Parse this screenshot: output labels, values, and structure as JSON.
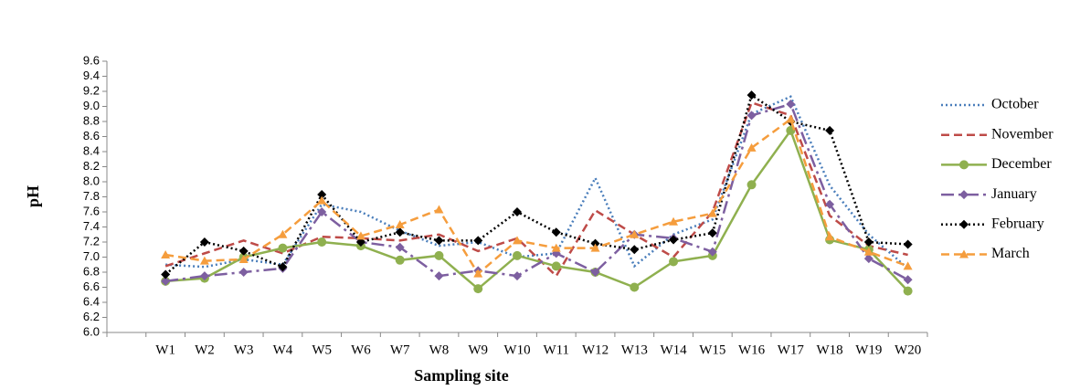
{
  "chart_data": {
    "type": "line",
    "x_label": "Sampling site",
    "y_label": "pH",
    "categories": [
      null,
      "W1",
      "W2",
      "W3",
      "W4",
      "W5",
      "W6",
      "W7",
      "W8",
      "W9",
      "W10",
      "W11",
      "W12",
      "W13",
      "W14",
      "W15",
      "W16",
      "W17",
      "W18",
      "W19",
      "W20"
    ],
    "ylim": [
      6.0,
      9.6
    ],
    "yticks": [
      {
        "value": 6.0,
        "label": "6.0"
      },
      {
        "value": 6.2,
        "label": "6.2"
      },
      {
        "value": 6.4,
        "label": "6.4"
      },
      {
        "value": 6.6,
        "label": "6.6"
      },
      {
        "value": 6.8,
        "label": "6.8"
      },
      {
        "value": 7.0,
        "label": "7.0"
      },
      {
        "value": 7.2,
        "label": "7.2"
      },
      {
        "value": 7.4,
        "label": "7.4"
      },
      {
        "value": 7.6,
        "label": "7.6"
      },
      {
        "value": 7.8,
        "label": "7.8"
      },
      {
        "value": 8.0,
        "label": "8.0"
      },
      {
        "value": 8.2,
        "label": "8.2"
      },
      {
        "value": 8.4,
        "label": "8.4"
      },
      {
        "value": 8.6,
        "label": "8.6"
      },
      {
        "value": 8.8,
        "label": "8.8"
      },
      {
        "value": 9.0,
        "label": "9.0"
      },
      {
        "value": 9.2,
        "label": "9.2"
      },
      {
        "value": 9.4,
        "label": "9.4"
      },
      {
        "value": 9.6,
        "label": "9.6"
      }
    ],
    "grid": false,
    "legend": "right",
    "series": [
      {
        "name": "October",
        "color": "#4a7ebb",
        "line_style": "dotted",
        "marker": "none",
        "values": [
          null,
          6.9,
          6.87,
          6.97,
          6.9,
          7.7,
          7.6,
          7.35,
          7.15,
          7.2,
          7.0,
          7.05,
          8.05,
          6.88,
          7.3,
          7.5,
          8.9,
          9.13,
          7.95,
          7.3,
          6.85
        ]
      },
      {
        "name": "November",
        "color": "#be4b48",
        "line_style": "dashed",
        "marker": "none",
        "values": [
          null,
          6.88,
          7.05,
          7.22,
          7.05,
          7.27,
          7.25,
          7.22,
          7.3,
          7.08,
          7.25,
          6.75,
          7.62,
          7.3,
          7.0,
          7.6,
          9.05,
          8.88,
          7.55,
          7.15,
          7.03
        ]
      },
      {
        "name": "December",
        "color": "#8fb04f",
        "line_style": "solid",
        "marker": "circle",
        "values": [
          null,
          6.68,
          6.72,
          7.0,
          7.12,
          7.2,
          7.15,
          6.96,
          7.02,
          6.58,
          7.02,
          6.88,
          6.8,
          6.6,
          6.94,
          7.02,
          7.96,
          8.68,
          7.23,
          7.1,
          6.55
        ]
      },
      {
        "name": "January",
        "color": "#7d5fa0",
        "line_style": "dashdot",
        "marker": "diamond",
        "values": [
          null,
          6.68,
          6.75,
          6.8,
          6.85,
          7.6,
          7.2,
          7.13,
          6.75,
          6.82,
          6.75,
          7.05,
          6.8,
          7.3,
          7.25,
          7.07,
          8.88,
          9.03,
          7.7,
          6.98,
          6.7
        ]
      },
      {
        "name": "February",
        "color": "#000000",
        "line_style": "dotted",
        "marker": "diamond",
        "values": [
          null,
          6.77,
          7.2,
          7.08,
          6.87,
          7.83,
          7.2,
          7.33,
          7.22,
          7.22,
          7.6,
          7.33,
          7.18,
          7.1,
          7.23,
          7.32,
          9.15,
          8.8,
          8.68,
          7.2,
          7.17
        ]
      },
      {
        "name": "March",
        "color": "#f59d3d",
        "line_style": "dashed",
        "marker": "triangle",
        "values": [
          null,
          7.03,
          6.95,
          6.97,
          7.3,
          7.75,
          7.28,
          7.43,
          7.63,
          6.78,
          7.22,
          7.12,
          7.12,
          7.3,
          7.47,
          7.58,
          8.45,
          8.83,
          7.27,
          7.07,
          6.88
        ]
      }
    ]
  }
}
